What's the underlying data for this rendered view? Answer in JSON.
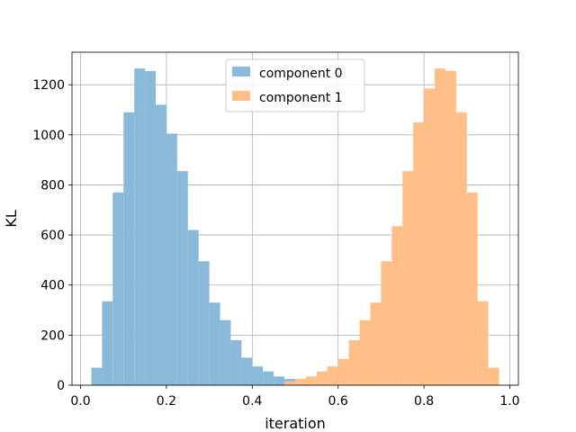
{
  "chart_data": {
    "type": "bar",
    "subtype": "overlapping-histogram",
    "title": "",
    "xlabel": "iteration",
    "ylabel": "KL",
    "xlim": [
      -0.02,
      1.02
    ],
    "ylim": [
      0,
      1330
    ],
    "xticks": [
      0.0,
      0.2,
      0.4,
      0.6,
      0.8,
      1.0
    ],
    "xtick_labels": [
      "0.0",
      "0.2",
      "0.4",
      "0.6",
      "0.8",
      "1.0"
    ],
    "yticks": [
      0,
      200,
      400,
      600,
      800,
      1000,
      1200
    ],
    "ytick_labels": [
      "0",
      "200",
      "400",
      "600",
      "800",
      "1000",
      "1200"
    ],
    "grid": true,
    "legend_position": "upper-center",
    "series": [
      {
        "name": "component 0",
        "color": "#8bb9d9",
        "bin_edges": [
          0.025,
          0.05,
          0.075,
          0.1,
          0.125,
          0.15,
          0.175,
          0.2,
          0.225,
          0.25,
          0.275,
          0.3,
          0.325,
          0.35,
          0.375,
          0.4,
          0.425,
          0.45,
          0.475,
          0.5,
          0.525
        ],
        "values": [
          70,
          335,
          770,
          1090,
          1265,
          1255,
          1120,
          1005,
          855,
          620,
          495,
          330,
          260,
          180,
          110,
          75,
          55,
          35,
          25,
          15
        ]
      },
      {
        "name": "component 1",
        "color": "#ffbf86",
        "bin_edges": [
          0.475,
          0.5,
          0.525,
          0.55,
          0.575,
          0.6,
          0.625,
          0.65,
          0.675,
          0.7,
          0.725,
          0.75,
          0.775,
          0.8,
          0.825,
          0.85,
          0.875,
          0.9,
          0.925,
          0.95,
          0.975
        ],
        "values": [
          15,
          25,
          35,
          55,
          75,
          105,
          180,
          260,
          330,
          495,
          635,
          855,
          1050,
          1185,
          1265,
          1255,
          1090,
          770,
          335,
          70
        ]
      }
    ]
  }
}
